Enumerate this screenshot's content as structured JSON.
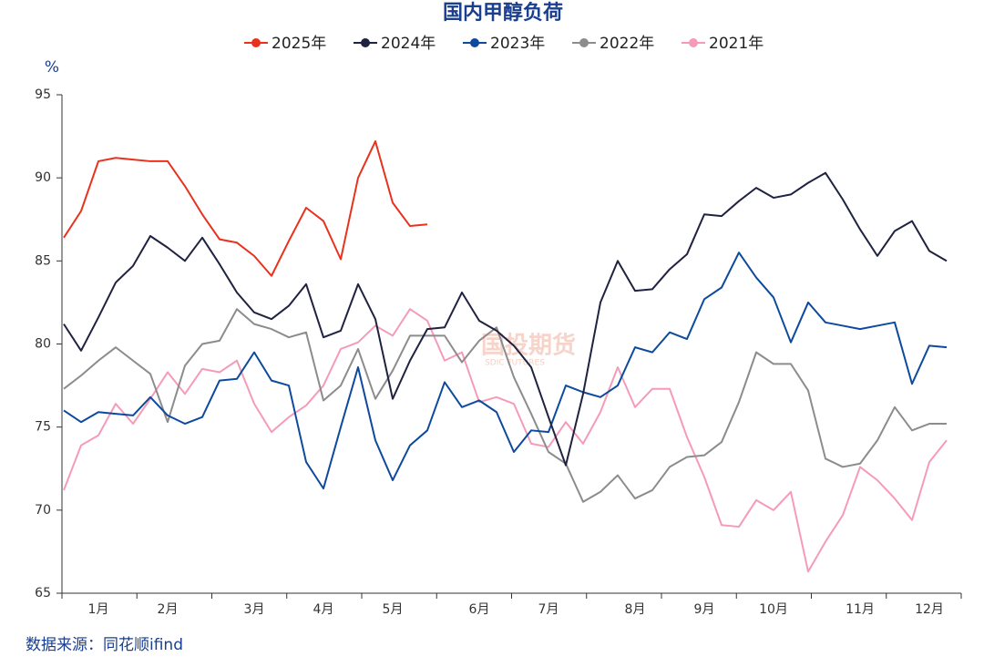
{
  "chart_data": {
    "type": "line",
    "title": "国内甲醇负荷",
    "y_label": "%",
    "source": "数据来源：同花顺ifind",
    "watermark": "国投期货",
    "watermark_sub": "SDIC FUTURES",
    "categories": [
      null,
      null,
      "1月",
      null,
      null,
      null,
      "2月",
      null,
      null,
      null,
      null,
      "3月",
      null,
      null,
      null,
      "4月",
      null,
      null,
      null,
      "5月",
      null,
      null,
      null,
      null,
      "6月",
      null,
      null,
      null,
      "7月",
      null,
      null,
      null,
      null,
      "8月",
      null,
      null,
      null,
      "9月",
      null,
      null,
      null,
      "10月",
      null,
      null,
      null,
      null,
      "11月",
      null,
      null,
      null,
      "12月",
      null
    ],
    "series": [
      {
        "name": "2025年",
        "color": "#e8321e",
        "values": [
          86.4,
          88.0,
          91.0,
          91.2,
          91.1,
          91.0,
          91.0,
          89.5,
          87.8,
          86.3,
          86.1,
          85.3,
          84.1,
          86.2,
          88.2,
          87.4,
          85.1,
          90.0,
          92.2,
          88.5,
          87.1,
          87.2,
          null,
          null,
          null,
          null,
          null,
          null,
          null,
          null,
          null,
          null,
          null,
          null,
          null,
          null,
          null,
          null,
          null,
          null,
          null,
          null,
          null,
          null,
          null,
          null,
          null,
          null,
          null,
          null,
          null,
          null
        ]
      },
      {
        "name": "2024年",
        "color": "#1f2240",
        "values": [
          81.2,
          79.6,
          81.6,
          83.7,
          84.7,
          86.5,
          85.8,
          85.0,
          86.4,
          84.8,
          83.1,
          81.9,
          81.5,
          82.3,
          83.6,
          80.4,
          80.8,
          83.6,
          81.5,
          76.7,
          79.0,
          80.9,
          81.0,
          83.1,
          81.4,
          80.8,
          79.9,
          78.6,
          75.6,
          72.7,
          77.0,
          82.5,
          85.0,
          83.2,
          83.3,
          84.5,
          85.4,
          87.8,
          87.7,
          88.6,
          89.4,
          88.8,
          89.0,
          89.7,
          90.3,
          88.7,
          86.9,
          85.3,
          86.8,
          87.4,
          85.6,
          85.0
        ]
      },
      {
        "name": "2023年",
        "color": "#0d4a9e",
        "values": [
          76.0,
          75.3,
          75.9,
          75.8,
          75.7,
          76.8,
          75.7,
          75.2,
          75.6,
          77.8,
          77.9,
          79.5,
          77.8,
          77.5,
          72.9,
          71.3,
          75.0,
          78.6,
          74.2,
          71.8,
          73.9,
          74.8,
          77.7,
          76.2,
          76.6,
          75.9,
          73.5,
          74.8,
          74.7,
          77.5,
          77.1,
          76.8,
          77.5,
          79.8,
          79.5,
          80.7,
          80.3,
          82.7,
          83.4,
          85.5,
          84.0,
          82.8,
          80.1,
          82.5,
          81.3,
          81.1,
          80.9,
          81.1,
          81.3,
          77.6,
          79.9,
          79.8
        ]
      },
      {
        "name": "2022年",
        "color": "#8c8c8c",
        "values": [
          77.3,
          78.1,
          79.0,
          79.8,
          79.0,
          78.2,
          75.3,
          78.7,
          80.0,
          80.2,
          82.1,
          81.2,
          80.9,
          80.4,
          80.7,
          76.6,
          77.5,
          79.7,
          76.7,
          78.4,
          80.5,
          80.5,
          80.5,
          78.9,
          80.2,
          81.0,
          78.0,
          75.8,
          73.5,
          72.8,
          70.5,
          71.1,
          72.1,
          70.7,
          71.2,
          72.6,
          73.2,
          73.3,
          74.1,
          76.5,
          79.5,
          78.8,
          78.8,
          77.2,
          73.1,
          72.6,
          72.8,
          74.2,
          76.2,
          74.8,
          75.2,
          75.2
        ]
      },
      {
        "name": "2021年",
        "color": "#f59bb8",
        "values": [
          71.2,
          73.9,
          74.5,
          76.4,
          75.2,
          76.7,
          78.3,
          77.0,
          78.5,
          78.3,
          79.0,
          76.4,
          74.7,
          75.6,
          76.3,
          77.5,
          79.7,
          80.1,
          81.1,
          80.5,
          82.1,
          81.4,
          79.0,
          79.5,
          76.5,
          76.8,
          76.4,
          74.0,
          73.8,
          75.3,
          74.0,
          75.9,
          78.6,
          76.2,
          77.3,
          77.3,
          74.4,
          72.0,
          69.1,
          69.0,
          70.6,
          70.0,
          71.1,
          66.3,
          68.1,
          69.7,
          72.6,
          71.8,
          70.7,
          69.4,
          72.9,
          74.2
        ]
      }
    ],
    "ylim": [
      65,
      95
    ],
    "yticks": [
      65,
      70,
      75,
      80,
      85,
      90,
      95
    ]
  }
}
